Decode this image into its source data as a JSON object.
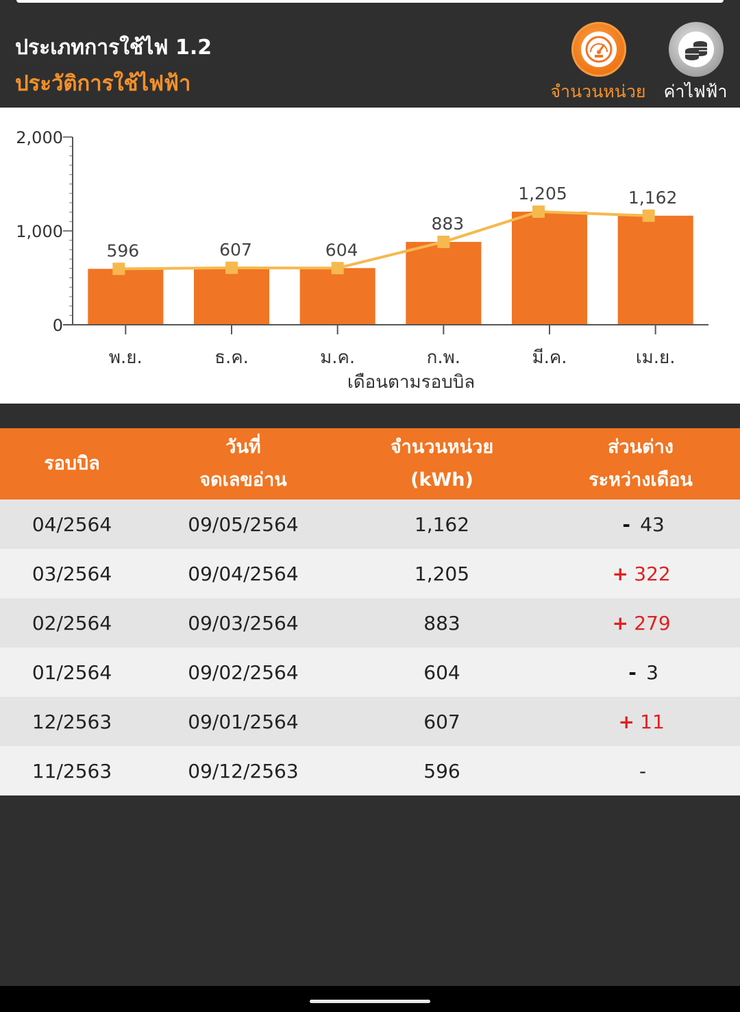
{
  "header": {
    "title": "ประเภทการใช้ไฟ 1.2",
    "subtitle": "ประวัติการใช้ไฟฟ้า"
  },
  "toggles": {
    "units": {
      "label": "จำนวนหน่วย",
      "icon": "speedometer-icon",
      "active": true
    },
    "cost": {
      "label": "ค่าไฟฟ้า",
      "icon": "coins-icon",
      "active": false
    }
  },
  "colors": {
    "accent": "#f5912a",
    "bar": "#f07524",
    "line": "#f6b94e",
    "header_bg": "#2f2f2f",
    "positive_diff": "#e02020"
  },
  "chart_data": {
    "type": "bar",
    "categories": [
      "พ.ย.",
      "ธ.ค.",
      "ม.ค.",
      "ก.พ.",
      "มี.ค.",
      "เม.ย."
    ],
    "values": [
      596,
      607,
      604,
      883,
      1205,
      1162
    ],
    "data_labels": [
      "596",
      "607",
      "604",
      "883",
      "1,205",
      "1,162"
    ],
    "line_overlay": [
      596,
      607,
      604,
      883,
      1205,
      1162
    ],
    "xlabel": "เดือนตามรอบบิล",
    "ylabel": "",
    "ylim": [
      0,
      2000
    ],
    "yticks": [
      "0",
      "1,000",
      "2,000"
    ],
    "grid": false
  },
  "table": {
    "headers": [
      [
        "รอบบิล"
      ],
      [
        "วันที่",
        "จดเลขอ่าน"
      ],
      [
        "จำนวนหน่วย",
        "(kWh)"
      ],
      [
        "ส่วนต่าง",
        "ระหว่างเดือน"
      ]
    ],
    "rows": [
      {
        "cycle": "04/2564",
        "read_date": "09/05/2564",
        "units": "1,162",
        "diff_sign": "-",
        "diff_value": "43"
      },
      {
        "cycle": "03/2564",
        "read_date": "09/04/2564",
        "units": "1,205",
        "diff_sign": "+",
        "diff_value": "322"
      },
      {
        "cycle": "02/2564",
        "read_date": "09/03/2564",
        "units": "883",
        "diff_sign": "+",
        "diff_value": "279"
      },
      {
        "cycle": "01/2564",
        "read_date": "09/02/2564",
        "units": "604",
        "diff_sign": "-",
        "diff_value": "3"
      },
      {
        "cycle": "12/2563",
        "read_date": "09/01/2564",
        "units": "607",
        "diff_sign": "+",
        "diff_value": "11"
      },
      {
        "cycle": "11/2563",
        "read_date": "09/12/2563",
        "units": "596",
        "diff_sign": "",
        "diff_value": "-"
      }
    ]
  }
}
